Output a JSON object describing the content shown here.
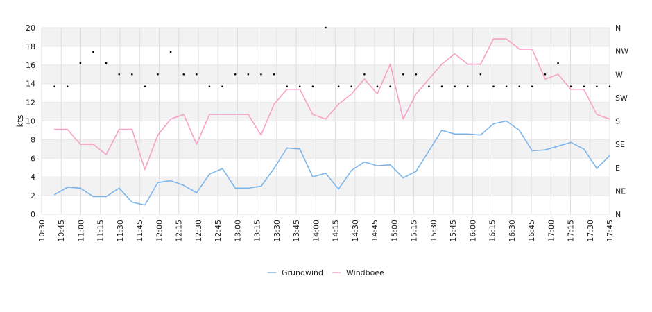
{
  "chart_data": {
    "type": "line",
    "ylabel": "kts",
    "ylim": [
      0,
      20
    ],
    "yticks": [
      0,
      2,
      4,
      6,
      8,
      10,
      12,
      14,
      16,
      18,
      20
    ],
    "direction_ticks": [
      "N",
      "NE",
      "E",
      "SE",
      "S",
      "SW",
      "W",
      "NW",
      "N"
    ],
    "direction_range_deg": [
      0,
      360
    ],
    "x_tick_labels": [
      "10:30",
      "10:45",
      "11:00",
      "11:15",
      "11:30",
      "11:45",
      "12:00",
      "12:15",
      "12:30",
      "12:45",
      "13:00",
      "13:15",
      "13:30",
      "13:45",
      "14:00",
      "14:15",
      "14:30",
      "14:45",
      "15:00",
      "15:15",
      "15:30",
      "15:45",
      "16:00",
      "16:15",
      "16:30",
      "16:45",
      "17:00",
      "17:15",
      "17:30",
      "17:45"
    ],
    "x_range_min": [
      0,
      440
    ],
    "x_minutes": [
      10,
      20,
      30,
      40,
      50,
      60,
      70,
      80,
      90,
      100,
      110,
      120,
      130,
      140,
      150,
      160,
      170,
      180,
      190,
      200,
      210,
      220,
      230,
      240,
      250,
      260,
      270,
      280,
      290,
      300,
      310,
      320,
      330,
      340,
      350,
      360,
      370,
      380,
      390,
      400,
      410,
      420,
      430,
      440
    ],
    "series": [
      {
        "name": "Grundwind",
        "color": "#7cb5ec",
        "values": [
          2.1,
          2.9,
          2.8,
          1.9,
          1.9,
          2.8,
          1.3,
          1.0,
          3.4,
          3.6,
          3.1,
          2.3,
          4.3,
          4.9,
          2.8,
          2.8,
          3.0,
          4.9,
          7.1,
          7.0,
          4.0,
          4.4,
          2.7,
          4.7,
          5.6,
          5.2,
          5.3,
          3.9,
          4.6,
          6.8,
          9.0,
          8.6,
          8.6,
          8.5,
          9.7,
          10.0,
          9.0,
          6.8,
          6.9,
          7.3,
          7.7,
          7.0,
          4.9,
          6.3
        ]
      },
      {
        "name": "Windboee",
        "color": "#f7a1c7",
        "values": [
          9.1,
          9.1,
          7.5,
          7.5,
          6.4,
          9.1,
          9.1,
          4.8,
          8.5,
          10.2,
          10.7,
          7.5,
          10.7,
          10.7,
          10.7,
          10.7,
          8.5,
          11.8,
          13.4,
          13.4,
          10.7,
          10.2,
          11.8,
          12.9,
          14.5,
          12.9,
          16.1,
          10.2,
          12.9,
          14.5,
          16.1,
          17.2,
          16.1,
          16.1,
          18.8,
          18.8,
          17.7,
          17.7,
          14.5,
          15.0,
          13.4,
          13.4,
          10.7,
          10.2
        ]
      }
    ],
    "direction_points": [
      {
        "x": 10,
        "v": 13.7
      },
      {
        "x": 20,
        "v": 13.7
      },
      {
        "x": 30,
        "v": 16.2
      },
      {
        "x": 40,
        "v": 17.4
      },
      {
        "x": 50,
        "v": 16.2
      },
      {
        "x": 60,
        "v": 15.0
      },
      {
        "x": 70,
        "v": 15.0
      },
      {
        "x": 80,
        "v": 13.7
      },
      {
        "x": 90,
        "v": 15.0
      },
      {
        "x": 100,
        "v": 17.4
      },
      {
        "x": 110,
        "v": 15.0
      },
      {
        "x": 120,
        "v": 15.0
      },
      {
        "x": 130,
        "v": 13.7
      },
      {
        "x": 140,
        "v": 13.7
      },
      {
        "x": 150,
        "v": 15.0
      },
      {
        "x": 160,
        "v": 15.0
      },
      {
        "x": 170,
        "v": 15.0
      },
      {
        "x": 180,
        "v": 15.0
      },
      {
        "x": 190,
        "v": 13.7
      },
      {
        "x": 200,
        "v": 13.7
      },
      {
        "x": 210,
        "v": 13.7
      },
      {
        "x": 220,
        "v": 20.0
      },
      {
        "x": 230,
        "v": 13.7
      },
      {
        "x": 240,
        "v": 13.7
      },
      {
        "x": 250,
        "v": 15.0
      },
      {
        "x": 260,
        "v": 13.7
      },
      {
        "x": 270,
        "v": 13.7
      },
      {
        "x": 280,
        "v": 15.0
      },
      {
        "x": 290,
        "v": 15.0
      },
      {
        "x": 300,
        "v": 13.7
      },
      {
        "x": 310,
        "v": 13.7
      },
      {
        "x": 320,
        "v": 13.7
      },
      {
        "x": 330,
        "v": 13.7
      },
      {
        "x": 340,
        "v": 15.0
      },
      {
        "x": 350,
        "v": 13.7
      },
      {
        "x": 360,
        "v": 13.7
      },
      {
        "x": 370,
        "v": 13.7
      },
      {
        "x": 380,
        "v": 13.7
      },
      {
        "x": 390,
        "v": 15.0
      },
      {
        "x": 400,
        "v": 16.2
      },
      {
        "x": 410,
        "v": 13.7
      },
      {
        "x": 420,
        "v": 13.7
      },
      {
        "x": 430,
        "v": 13.7
      },
      {
        "x": 440,
        "v": 13.7
      }
    ],
    "grid": true,
    "alternating_bands": true,
    "legend_position": "bottom-center"
  }
}
